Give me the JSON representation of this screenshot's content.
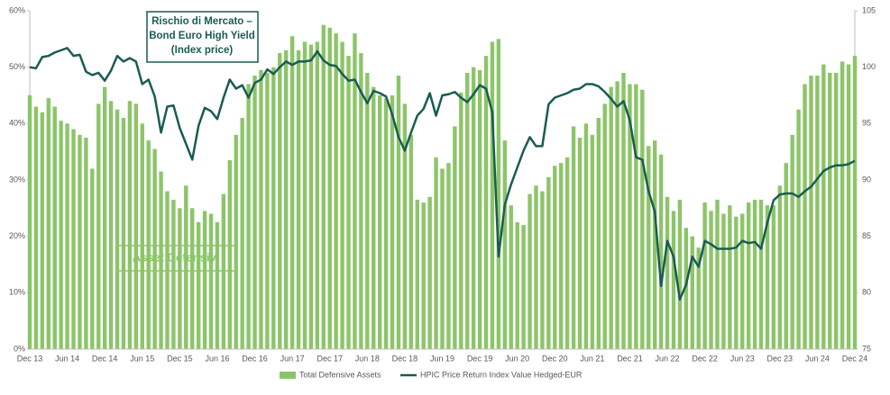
{
  "chart_data": {
    "type": "bar-line",
    "categories": [
      "Dec 13",
      null,
      null,
      null,
      null,
      null,
      "Jun 14",
      null,
      null,
      null,
      null,
      null,
      "Dec 14",
      null,
      null,
      null,
      null,
      null,
      "Jun 15",
      null,
      null,
      null,
      null,
      null,
      "Dec 15",
      null,
      null,
      null,
      null,
      null,
      "Jun 16",
      null,
      null,
      null,
      null,
      null,
      "Dec 16",
      null,
      null,
      null,
      null,
      null,
      "Jun 17",
      null,
      null,
      null,
      null,
      null,
      "Dec 17",
      null,
      null,
      null,
      null,
      null,
      "Jun 18",
      null,
      null,
      null,
      null,
      null,
      "Dec 18",
      null,
      null,
      null,
      null,
      null,
      "Jun 19",
      null,
      null,
      null,
      null,
      null,
      "Dec 19",
      null,
      null,
      null,
      null,
      null,
      "Jun 20",
      null,
      null,
      null,
      null,
      null,
      "Dec 20",
      null,
      null,
      null,
      null,
      null,
      "Jun 21",
      null,
      null,
      null,
      null,
      null,
      "Dec 21",
      null,
      null,
      null,
      null,
      null,
      "Jun 22",
      null,
      null,
      null,
      null,
      null,
      "Dec 22",
      null,
      null,
      null,
      null,
      null,
      "Jun 23",
      null,
      null,
      null,
      null,
      null,
      "Dec 23",
      null,
      null,
      null,
      null,
      null,
      "Jun 24",
      null,
      null,
      null,
      null,
      null,
      "Dec 24"
    ],
    "series": [
      {
        "name": "Total Defensive Assets",
        "color": "#8cc569",
        "kind": "bar",
        "axis": "y",
        "values": [
          45,
          43,
          42,
          44.5,
          43,
          40.5,
          40,
          39,
          38,
          37.5,
          32,
          43.5,
          46.5,
          44,
          42.5,
          41,
          44,
          43.5,
          40,
          37,
          35.5,
          31.5,
          28,
          26.5,
          25,
          29,
          25,
          22.5,
          24.5,
          24,
          22.5,
          27.5,
          33.5,
          38,
          41,
          47,
          48.5,
          49.5,
          49,
          50,
          52.5,
          53,
          55.5,
          53,
          54.5,
          54,
          54.5,
          57.5,
          57,
          56,
          54.5,
          52,
          56,
          52.5,
          49,
          46.5,
          45,
          44.5,
          45,
          48.5,
          43.5,
          38,
          26.5,
          26,
          27,
          34,
          32,
          33,
          39.5,
          45.5,
          49,
          50,
          49.5,
          52,
          54.5,
          55,
          37,
          25.5,
          22.5,
          22,
          27.5,
          29,
          28,
          30.5,
          32.5,
          33,
          34,
          39.5,
          37.5,
          40,
          38,
          41,
          43.5,
          46.5,
          47.5,
          49,
          47,
          47,
          46,
          36,
          37,
          34.5,
          27,
          24.5,
          26.5,
          21.5,
          20,
          18,
          26,
          24.5,
          26.5,
          24,
          25.5,
          23.5,
          24,
          26,
          26.5,
          26.5,
          25.5,
          25.5,
          29,
          33,
          38,
          42.5,
          47,
          48.5,
          48.5,
          50.5,
          49,
          49,
          51,
          50.5,
          52
        ]
      },
      {
        "name": "HPIC Price Return Index Value  Hedged-EUR",
        "color": "#1a5c52",
        "kind": "line",
        "axis": "y2",
        "values": [
          100.0,
          99.9,
          100.9,
          101.0,
          101.3,
          101.5,
          101.7,
          101.0,
          101.1,
          99.6,
          99.3,
          99.5,
          98.8,
          99.7,
          101.0,
          100.5,
          100.8,
          100.5,
          98.5,
          98.9,
          97.4,
          94.2,
          96.5,
          96.6,
          94.6,
          93.2,
          91.8,
          94.8,
          96.4,
          96.1,
          95.4,
          97.3,
          98.9,
          98.1,
          98.4,
          97.3,
          98.6,
          98.9,
          99.8,
          99.4,
          100.0,
          100.5,
          100.2,
          100.5,
          100.5,
          100.6,
          101.4,
          100.6,
          100.2,
          100.1,
          99.4,
          98.8,
          98.9,
          97.8,
          96.8,
          97.9,
          97.7,
          97.4,
          95.8,
          93.8,
          92.6,
          94.2,
          95.7,
          96.3,
          97.7,
          95.7,
          97.5,
          97.6,
          97.8,
          97.3,
          96.9,
          97.6,
          98.4,
          98.1,
          96.0,
          83.2,
          87.8,
          89.6,
          91.1,
          92.6,
          93.8,
          93.0,
          93.0,
          96.7,
          97.3,
          97.5,
          97.7,
          98.0,
          98.1,
          98.5,
          98.5,
          98.3,
          97.8,
          97.2,
          96.5,
          97.0,
          95.3,
          92.0,
          91.8,
          89.0,
          87.2,
          80.6,
          84.6,
          83.2,
          79.4,
          80.7,
          83.2,
          82.3,
          84.6,
          84.3,
          83.9,
          83.9,
          83.9,
          84.0,
          84.6,
          84.4,
          84.5,
          83.9,
          86.2,
          88.2,
          88.7,
          88.8,
          88.8,
          88.5,
          89.0,
          89.4,
          90.1,
          90.8,
          91.1,
          91.3,
          91.3,
          91.4,
          91.7
        ]
      }
    ],
    "ylim": [
      0,
      60
    ],
    "yticks": [
      {
        "value": 0,
        "label": "0%"
      },
      {
        "value": 10,
        "label": "10%"
      },
      {
        "value": 20,
        "label": "20%"
      },
      {
        "value": 30,
        "label": "30%"
      },
      {
        "value": 40,
        "label": "40%"
      },
      {
        "value": 50,
        "label": "50%"
      },
      {
        "value": 60,
        "label": "60%"
      }
    ],
    "y2lim": [
      75,
      105
    ],
    "y2ticks": [
      75,
      80,
      85,
      90,
      95,
      100,
      105
    ],
    "annotations": [
      {
        "lines": [
          "Rischio di Mercato –",
          "Bond Euro High Yield",
          "(Index price)"
        ]
      },
      {
        "lines": [
          "Asset Defensivi"
        ]
      }
    ],
    "legend": "bottom"
  }
}
